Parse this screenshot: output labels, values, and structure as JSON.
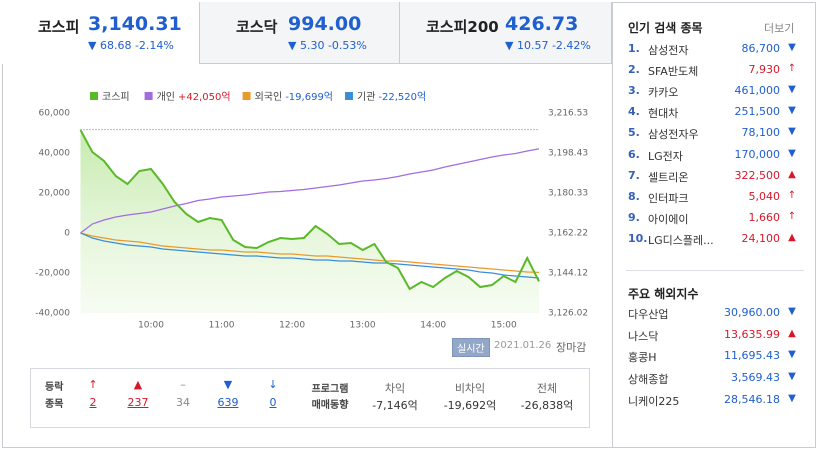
{
  "tabs": [
    {
      "name": "코스피",
      "value": "3,140.31",
      "change": "▼ 68.68 -2.14%"
    },
    {
      "name": "코스닥",
      "value": "994.00",
      "change": "▼ 5.30 -0.53%"
    },
    {
      "name": "코스피200",
      "value": "426.73",
      "change": "▼ 10.57 -2.42%"
    }
  ],
  "chart_data": {
    "type": "line",
    "categories": [
      null,
      null,
      null,
      null,
      null,
      null,
      "10:00",
      null,
      null,
      null,
      null,
      null,
      "11:00",
      null,
      null,
      null,
      null,
      null,
      "12:00",
      null,
      null,
      null,
      null,
      null,
      "13:00",
      null,
      null,
      null,
      null,
      null,
      "14:00",
      null,
      null,
      null,
      null,
      null,
      "15:00",
      null,
      null,
      null
    ],
    "series": [
      {
        "name": "코스피",
        "summary": null,
        "color": "#5bb829",
        "axis": "y2",
        "values": [
          3208.84,
          3198.88,
          3194.81,
          3188.02,
          3184.4,
          3190.28,
          3191.19,
          3184.4,
          3176.25,
          3170.82,
          3167.2,
          3169.01,
          3168.11,
          3159.06,
          3155.89,
          3155.44,
          3158.15,
          3159.96,
          3159.51,
          3159.96,
          3165.39,
          3161.77,
          3157.25,
          3157.7,
          3154.53,
          3157.25,
          3149.1,
          3146.38,
          3136.88,
          3140.05,
          3137.79,
          3141.86,
          3145.03,
          3142.31,
          3137.79,
          3138.69,
          3142.76,
          3140.05,
          3150.91,
          3140.31
        ]
      },
      {
        "name": "개인",
        "summary": "+42,050억",
        "color": "#a26ddf",
        "values": [
          0,
          4500,
          6500,
          8000,
          9000,
          9750,
          10500,
          12000,
          13500,
          14750,
          16250,
          17000,
          18000,
          18500,
          19000,
          19750,
          20500,
          20750,
          21250,
          21750,
          22500,
          23250,
          24000,
          25000,
          26000,
          26500,
          27250,
          28250,
          29500,
          30500,
          31500,
          33000,
          34250,
          35500,
          36750,
          38000,
          39000,
          39750,
          41000,
          42050
        ]
      },
      {
        "name": "외국인",
        "summary": "-19,699억",
        "color": "#e89a2c",
        "values": [
          0,
          -1500,
          -2500,
          -3500,
          -4000,
          -4500,
          -5500,
          -6500,
          -7000,
          -7500,
          -8000,
          -8500,
          -8500,
          -9000,
          -9500,
          -9500,
          -10000,
          -10500,
          -10500,
          -11000,
          -11500,
          -11500,
          -12000,
          -12500,
          -13000,
          -13500,
          -14000,
          -14000,
          -14500,
          -15000,
          -15500,
          -16000,
          -16500,
          -17000,
          -17500,
          -18000,
          -18500,
          -19000,
          -19500,
          -19699
        ]
      },
      {
        "name": "기관",
        "summary": "-22,520억",
        "color": "#3a8ed8",
        "values": [
          0,
          -2500,
          -4000,
          -5000,
          -6000,
          -6500,
          -7000,
          -8000,
          -8500,
          -9000,
          -9500,
          -10000,
          -10500,
          -11000,
          -11500,
          -11500,
          -12000,
          -12500,
          -12500,
          -13000,
          -13500,
          -13500,
          -14000,
          -14000,
          -14500,
          -15000,
          -15000,
          -15500,
          -16000,
          -16500,
          -17000,
          -17500,
          -18000,
          -18500,
          -19500,
          -20000,
          -21000,
          -21500,
          -22000,
          -22520
        ]
      }
    ],
    "ylim": [
      -40000,
      60000
    ],
    "yticks": [
      {
        "value": -40000,
        "label": "-40,000"
      },
      {
        "value": -20000,
        "label": "-20,000"
      },
      0,
      {
        "value": 20000,
        "label": "20,000"
      },
      {
        "value": 40000,
        "label": "40,000"
      },
      {
        "value": 60000,
        "label": "60,000"
      }
    ],
    "y2lim": [
      3126.02,
      3216.53
    ],
    "y2ticks": [
      {
        "value": 3126.02,
        "label": "3,126.02"
      },
      {
        "value": 3144.12,
        "label": "3,144.12"
      },
      {
        "value": 3162.22,
        "label": "3,162.22"
      },
      {
        "value": 3180.33,
        "label": "3,180.33"
      },
      {
        "value": 3198.43,
        "label": "3,198.43"
      },
      {
        "value": 3216.53,
        "label": "3,216.53"
      }
    ],
    "y2_reference": 3208.99,
    "grid": false
  },
  "status": {
    "realtime": "실시간",
    "date": "2021.01.26",
    "state": "장마감"
  },
  "advance_decline": {
    "label_lines": [
      "등락",
      "종목"
    ],
    "items": [
      {
        "symbol": "↑",
        "count": "2"
      },
      {
        "symbol": "▲",
        "count": "237"
      },
      {
        "symbol": "–",
        "count": "34"
      },
      {
        "symbol": "▼",
        "count": "639"
      },
      {
        "symbol": "↓",
        "count": "0"
      }
    ]
  },
  "program_trading": {
    "title_lines": [
      "프로그램",
      "매매동향"
    ],
    "items": [
      {
        "label": "차익",
        "value": "-7,146억"
      },
      {
        "label": "비차익",
        "value": "-19,692억"
      },
      {
        "label": "전체",
        "value": "-26,838억"
      }
    ]
  },
  "popular": {
    "title": "인기 검색 종목",
    "more": "더보기",
    "items": [
      {
        "rank": "1.",
        "name": "삼성전자",
        "price": "86,700",
        "direction": "▼"
      },
      {
        "rank": "2.",
        "name": "SFA반도체",
        "price": "7,930",
        "direction": "↑"
      },
      {
        "rank": "3.",
        "name": "카카오",
        "price": "461,000",
        "direction": "▼"
      },
      {
        "rank": "4.",
        "name": "현대차",
        "price": "251,500",
        "direction": "▼"
      },
      {
        "rank": "5.",
        "name": "삼성전자우",
        "price": "78,100",
        "direction": "▼"
      },
      {
        "rank": "6.",
        "name": "LG전자",
        "price": "170,000",
        "direction": "▼"
      },
      {
        "rank": "7.",
        "name": "셀트리온",
        "price": "322,500",
        "direction": "▲"
      },
      {
        "rank": "8.",
        "name": "인터파크",
        "price": "5,040",
        "direction": "↑"
      },
      {
        "rank": "9.",
        "name": "아이에이",
        "price": "1,660",
        "direction": "↑"
      },
      {
        "rank": "10.",
        "name": "LG디스플레...",
        "price": "24,100",
        "direction": "▲"
      }
    ]
  },
  "world": {
    "title": "주요 해외지수",
    "items": [
      {
        "name": "다우산업",
        "value": "30,960.00",
        "direction": "▼"
      },
      {
        "name": "나스닥",
        "value": "13,635.99",
        "direction": "▲"
      },
      {
        "name": "홍콩H",
        "value": "11,695.43",
        "direction": "▼"
      },
      {
        "name": "상해종합",
        "value": "3,569.43",
        "direction": "▼"
      },
      {
        "name": "니케이225",
        "value": "28,546.18",
        "direction": "▼"
      }
    ]
  }
}
